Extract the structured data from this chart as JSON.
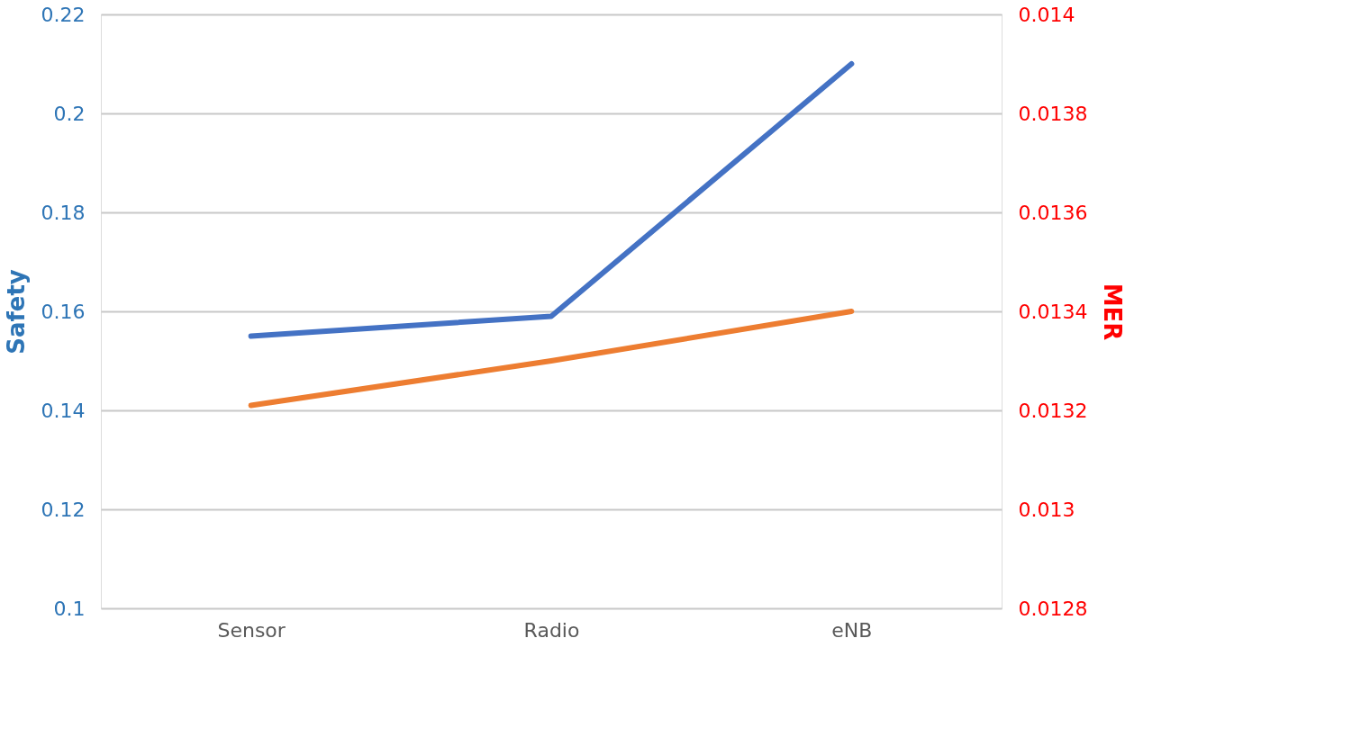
{
  "chart_data": {
    "type": "line",
    "categories": [
      "Sensor",
      "Radio",
      "eNB"
    ],
    "ylabel": "Safety",
    "y2label": "MER",
    "ylim": [
      0.1,
      0.22
    ],
    "yticks": [
      0.1,
      0.12,
      0.14,
      0.16,
      0.18,
      0.2,
      0.22
    ],
    "y2lim": [
      0.0128,
      0.014
    ],
    "y2ticks": [
      0.0128,
      0.013,
      0.0132,
      0.0134,
      0.0136,
      0.0138,
      0.014
    ],
    "grid": "y",
    "marker": "none",
    "line_style": "solid",
    "series": [
      {
        "color": "#4472c4",
        "values": [
          0.155,
          0.159,
          0.21
        ]
      },
      {
        "color": "#ed7d31",
        "values": [
          0.01321,
          0.0133,
          0.0134
        ],
        "axis": "y2"
      }
    ]
  }
}
